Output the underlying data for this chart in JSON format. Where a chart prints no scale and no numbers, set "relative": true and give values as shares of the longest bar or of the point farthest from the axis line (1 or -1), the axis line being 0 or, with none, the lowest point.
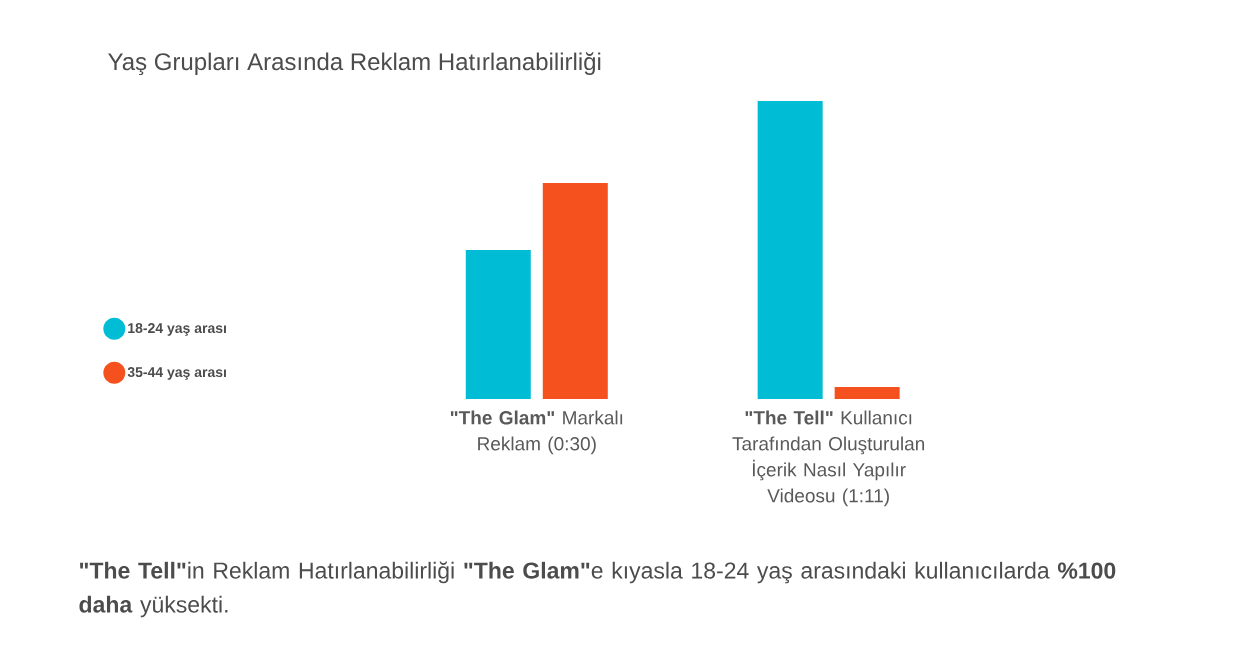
{
  "chart_data": {
    "type": "bar",
    "title": "Yaş Grupları Arasında Reklam Hatırlanabilirliği",
    "categories": [
      "**\"The Glam\"** Markalı Reklam (0:30)",
      "**\"The Tell\"** Kullanıcı Tarafından Oluşturulan İçerik Nasıl Yapılır Videosu (1:11)"
    ],
    "series": [
      {
        "name": "18-24 yaş arası",
        "color": "#00bcd4",
        "values": [
          0.5,
          1
        ]
      },
      {
        "name": "35-44 yaş arası",
        "color": "#f4511e",
        "values": [
          0.725,
          0.04
        ]
      }
    ],
    "relative": true,
    "legend": "left",
    "annotations": [
      "**\"The Tell\"**in Reklam Hatırlanabilirliği **\"The Glam\"**e kıyasla 18-24 yaş arasındaki kullanıcılarda **%100 daha** yüksekti."
    ]
  }
}
